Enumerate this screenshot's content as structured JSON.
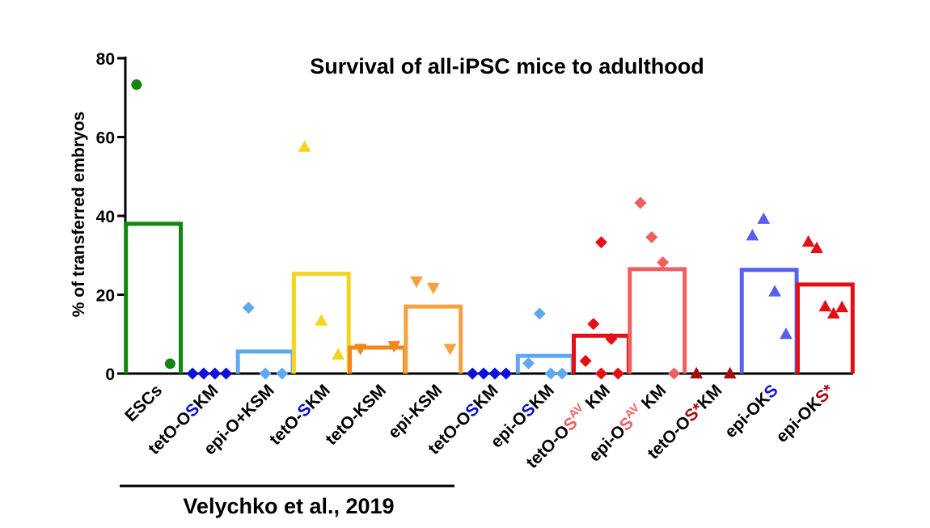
{
  "chart_data": {
    "type": "bar",
    "title": "Survival of all-iPSC mice to adulthood",
    "xlabel": "",
    "ylabel": "% of transferred embryos",
    "ylim": [
      0,
      80
    ],
    "yticks": [
      0,
      20,
      40,
      60,
      80
    ],
    "categories": [
      {
        "key": "escs",
        "parts": [
          {
            "text": "ESCs"
          }
        ],
        "color": "#128512",
        "marker": "circle",
        "mean": 38,
        "points": [
          73.3,
          2.5
        ]
      },
      {
        "key": "teto-oskm-2019",
        "parts": [
          {
            "text": "tetO-O"
          },
          {
            "text": "S",
            "color": "#0a10d8"
          },
          {
            "text": "KM"
          }
        ],
        "color": "#0a10d8",
        "marker": "diamond",
        "mean": 0,
        "points": [
          0,
          0,
          0,
          0
        ]
      },
      {
        "key": "epi-o-ksm",
        "parts": [
          {
            "text": "epi-O+KSM"
          }
        ],
        "color": "#5fa8ef",
        "marker": "diamond",
        "mean": 5.6,
        "points": [
          16.7,
          0,
          0
        ]
      },
      {
        "key": "teto-skm",
        "parts": [
          {
            "text": "tetO-"
          },
          {
            "text": "S",
            "color": "#0a10d8"
          },
          {
            "text": "KM"
          }
        ],
        "color": "#f6d41c",
        "marker": "triangle-up",
        "mean": 25.3,
        "points": [
          57.5,
          13.4,
          4.8
        ]
      },
      {
        "key": "teto-ksm",
        "parts": [
          {
            "text": "tetO-KSM"
          }
        ],
        "color": "#f3851c",
        "marker": "triangle-down",
        "mean": 6.6,
        "points": [
          6.3,
          7.0
        ]
      },
      {
        "key": "epi-ksm",
        "parts": [
          {
            "text": "epi-KSM"
          }
        ],
        "color": "#f6a042",
        "marker": "triangle-down",
        "mean": 17,
        "points": [
          23.4,
          21.8,
          6.3
        ]
      },
      {
        "key": "teto-oskm",
        "parts": [
          {
            "text": "tetO-O"
          },
          {
            "text": "S",
            "color": "#0a10d8"
          },
          {
            "text": "KM"
          }
        ],
        "color": "#0a10d8",
        "marker": "diamond",
        "mean": 0,
        "points": [
          0,
          0,
          0,
          0
        ]
      },
      {
        "key": "epi-oskm",
        "parts": [
          {
            "text": "epi-O"
          },
          {
            "text": "S",
            "color": "#0a10d8"
          },
          {
            "text": "KM"
          }
        ],
        "color": "#5fa8ef",
        "marker": "diamond",
        "mean": 4.5,
        "points": [
          2.6,
          15.2,
          0,
          0
        ]
      },
      {
        "key": "teto-osav-km",
        "parts": [
          {
            "text": "tetO-O"
          },
          {
            "text": "S",
            "color": "#ef5f5f"
          },
          {
            "text": "AV",
            "color": "#ef5f5f",
            "sup": true
          },
          {
            "text": " KM"
          }
        ],
        "color": "#e50d16",
        "marker": "diamond",
        "mean": 9.6,
        "points": [
          3.2,
          12.6,
          0,
          33.3,
          8.8,
          0
        ],
        "dx": [
          -0.28,
          -0.14,
          0,
          0,
          0.18,
          0.3
        ]
      },
      {
        "key": "epi-osav-km",
        "parts": [
          {
            "text": "epi-O"
          },
          {
            "text": "S",
            "color": "#ef5f5f"
          },
          {
            "text": "AV",
            "color": "#ef5f5f",
            "sup": true
          },
          {
            "text": " KM"
          }
        ],
        "color": "#ef5f5f",
        "marker": "diamond",
        "mean": 26.5,
        "points": [
          43.3,
          34.6,
          28.2,
          0
        ]
      },
      {
        "key": "teto-osstar-km",
        "parts": [
          {
            "text": "tetO-O"
          },
          {
            "text": "S*",
            "color": "#a60c14"
          },
          {
            "text": "KM"
          }
        ],
        "color": "#a60c14",
        "marker": "triangle-up",
        "mean": 0,
        "points": [
          0,
          0
        ]
      },
      {
        "key": "epi-oks",
        "parts": [
          {
            "text": "epi-OK"
          },
          {
            "text": "S",
            "color": "#0a10d8"
          }
        ],
        "color": "#5a5fec",
        "marker": "triangle-up",
        "mean": 26.3,
        "points": [
          35,
          39.2,
          20.8,
          10
        ]
      },
      {
        "key": "epi-oksstar",
        "parts": [
          {
            "text": "epi-OK"
          },
          {
            "text": "S*",
            "color": "#a60c14"
          }
        ],
        "color": "#e50d16",
        "marker": "triangle-up",
        "mean": 22.6,
        "points": [
          33.4,
          31.8,
          17,
          15.2,
          16.8
        ]
      }
    ],
    "annotations": [
      {
        "text": "Velychko et al., 2019",
        "spans_categories": [
          0,
          5
        ]
      }
    ]
  }
}
